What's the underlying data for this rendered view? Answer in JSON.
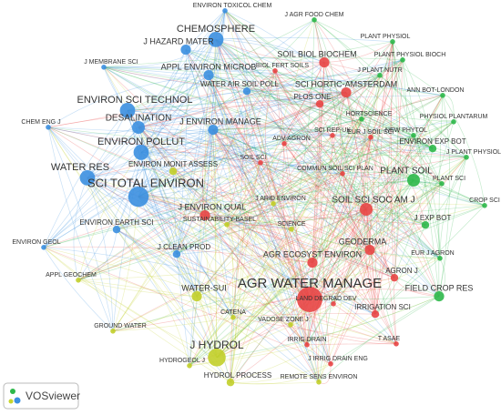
{
  "nodes": [
    {
      "label": "ENVIRON TOXICOL CHEM"
    },
    {
      "label": "CHEMOSPHERE"
    },
    {
      "label": "J HAZARD MATER"
    },
    {
      "label": "J MEMBRANE SCI"
    },
    {
      "label": "APPL ENVIRON MICROB"
    },
    {
      "label": "WATER AIR SOIL POLL"
    },
    {
      "label": "ENVIRON SCI TECHNOL"
    },
    {
      "label": "DESALINATION"
    },
    {
      "label": "CHEM ENG J"
    },
    {
      "label": "J ENVIRON MANAGE"
    },
    {
      "label": "ENVIRON POLLUT"
    },
    {
      "label": "WATER RES"
    },
    {
      "label": "SCI TOTAL ENVIRON"
    },
    {
      "label": "ENVIRON EARTH SCI"
    },
    {
      "label": "ENVIRON GEOL"
    },
    {
      "label": "J CLEAN PROD"
    },
    {
      "label": "ENVIRON MONIT ASSESS"
    },
    {
      "label": "SUSTAINABILITY-BASEL"
    },
    {
      "label": "J ARID ENVIRON"
    },
    {
      "label": "SCIENCE"
    },
    {
      "label": "APPL GEOCHEM"
    },
    {
      "label": "WATER-SUI"
    },
    {
      "label": "CATENA"
    },
    {
      "label": "VADOSE ZONE J"
    },
    {
      "label": "GROUND WATER"
    },
    {
      "label": "J HYDROL"
    },
    {
      "label": "HYDROGEOL J"
    },
    {
      "label": "HYDROL PROCESS"
    },
    {
      "label": "REMOTE SENS ENVIRON"
    },
    {
      "label": "SOIL BIOL BIOCHEM"
    },
    {
      "label": "BIOL FERT SOILS"
    },
    {
      "label": "SCI HORTIC-AMSTERDAM"
    },
    {
      "label": "PLOS ONE"
    },
    {
      "label": "ADV AGRON"
    },
    {
      "label": "SCI REP-UK"
    },
    {
      "label": "SOIL SCI"
    },
    {
      "label": "J ENVIRON QUAL"
    },
    {
      "label": "EUR J SOIL SCI"
    },
    {
      "label": "COMMUN SOIL SCI PLAN"
    },
    {
      "label": "SOIL SCI SOC AM J"
    },
    {
      "label": "AGR ECOSYST ENVIRON"
    },
    {
      "label": "GEODERMA"
    },
    {
      "label": "AGRON J"
    },
    {
      "label": "AGR WATER MANAGE"
    },
    {
      "label": "LAND DEGRAD DEV"
    },
    {
      "label": "IRRIGATION SCI"
    },
    {
      "label": "IRRIG DRAIN"
    },
    {
      "label": "T ASAE"
    },
    {
      "label": "J IRRIG DRAIN ENG"
    },
    {
      "label": "J AGR FOOD CHEM"
    },
    {
      "label": "PLANT PHYSIOL"
    },
    {
      "label": "PLANT PHYSIOL BIOCH"
    },
    {
      "label": "J PLANT NUTR"
    },
    {
      "label": "ANN BOT-LONDON"
    },
    {
      "label": "HORTSCIENCE"
    },
    {
      "label": "PHYSIOL PLANTARUM"
    },
    {
      "label": "NEW PHYTOL"
    },
    {
      "label": "J PLANT PHYSIOL"
    },
    {
      "label": "ENVIRON EXP BOT"
    },
    {
      "label": "PLANT SOIL"
    },
    {
      "label": "PLANT SCI"
    },
    {
      "label": "CROP SCI"
    },
    {
      "label": "EUR J AGRON"
    },
    {
      "label": "J EXP BOT"
    },
    {
      "label": "FIELD CROP RES"
    }
  ],
  "brand": "VOSviewer"
}
